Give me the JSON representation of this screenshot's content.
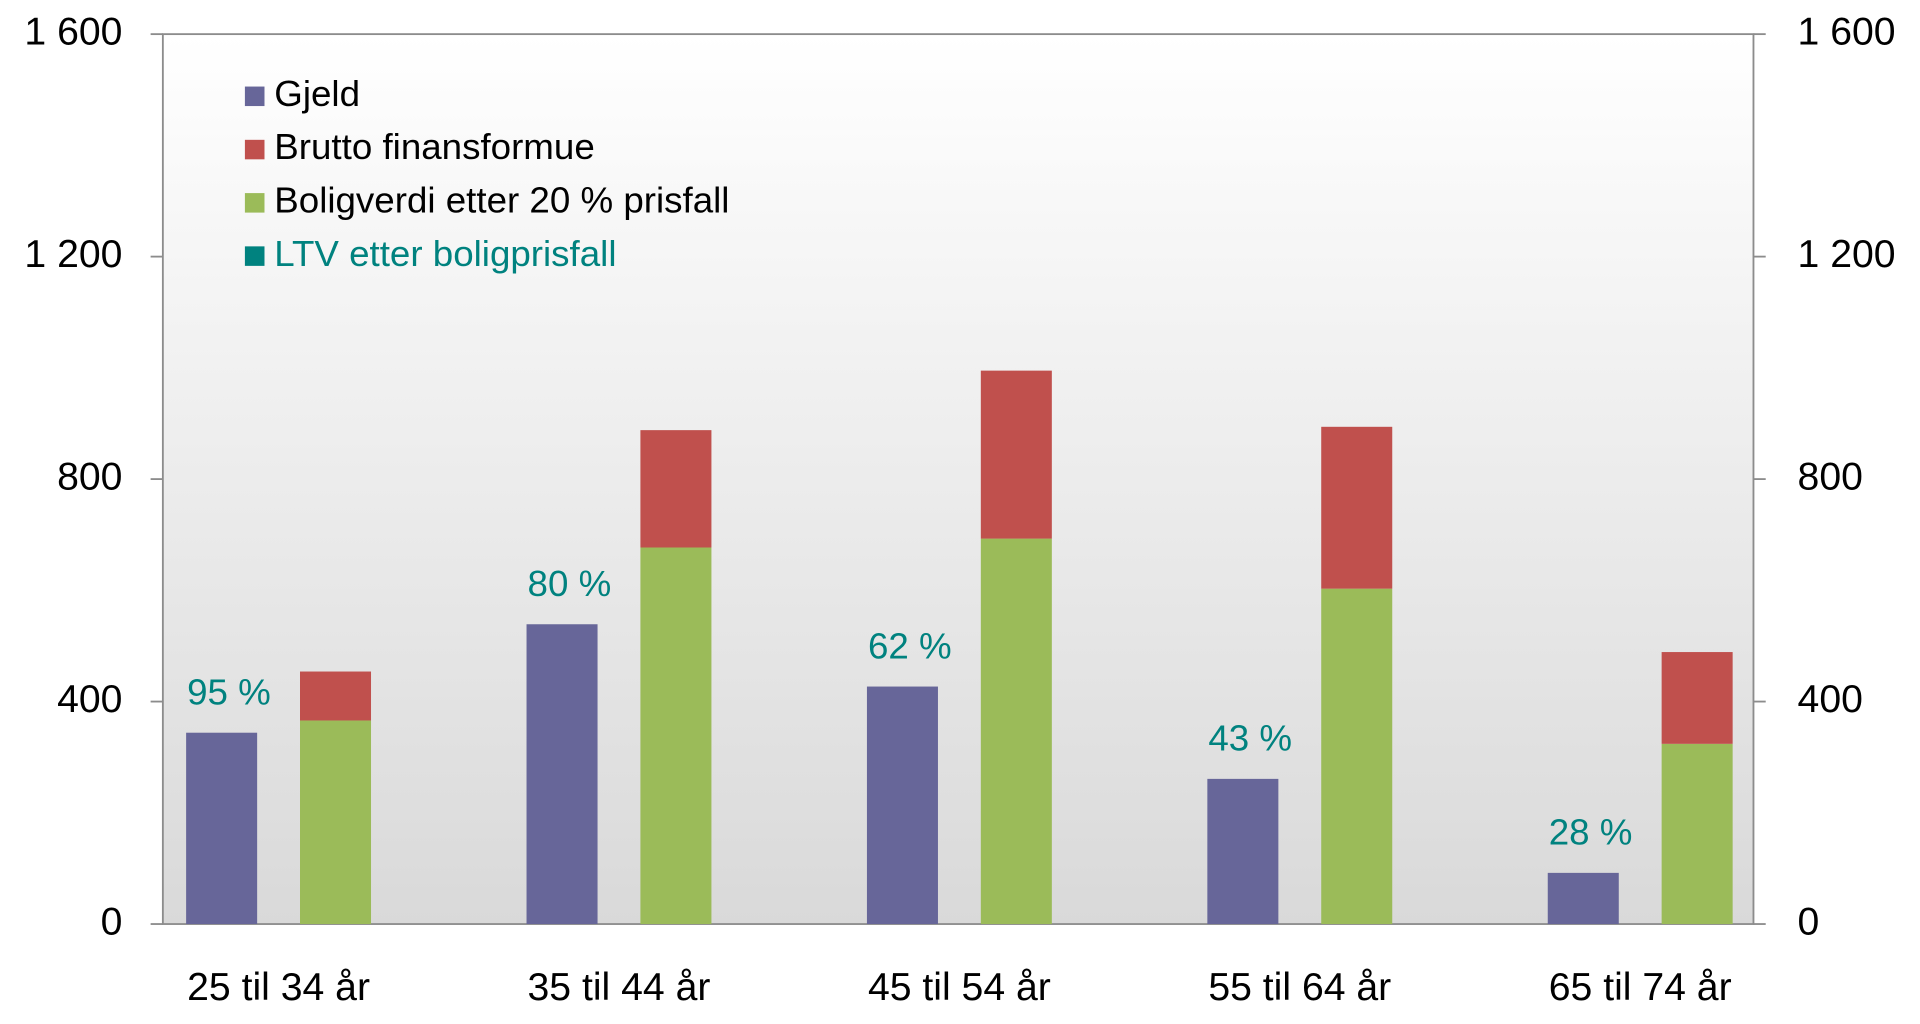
{
  "chart_data": {
    "type": "bar",
    "categories": [
      "25 til 34 år",
      "35 til 44 år",
      "45 til 54 år",
      "55 til 64 år",
      "65 til 74 år"
    ],
    "series": [
      {
        "name": "Gjeld",
        "color": "#676699",
        "values": [
          344,
          539,
          427,
          261,
          92
        ]
      },
      {
        "name": "Brutto finansformue",
        "color": "#c0504d",
        "values": [
          88,
          211,
          302,
          291,
          165
        ]
      },
      {
        "name": "Boligverdi etter 20 % prisfall",
        "color": "#9bbb59",
        "values": [
          366,
          677,
          693,
          603,
          324
        ]
      },
      {
        "name": "LTV etter boligprisfall",
        "color": "#00827f",
        "values": [
          95,
          80,
          62,
          43,
          28
        ],
        "value_labels": [
          "95 %",
          "80 %",
          "62 %",
          "43 %",
          "28 %"
        ]
      }
    ],
    "ylim": [
      0,
      1600
    ],
    "yticks": [
      0,
      400,
      800,
      {
        "value": 1200,
        "label": "1 200"
      },
      {
        "value": 1600,
        "label": "1 600"
      }
    ],
    "y2lim": [
      0,
      1600
    ],
    "y2ticks": [
      0,
      400,
      800,
      {
        "value": 1200,
        "label": "1 200"
      },
      {
        "value": 1600,
        "label": "1 600"
      }
    ],
    "legend": "upper left"
  }
}
